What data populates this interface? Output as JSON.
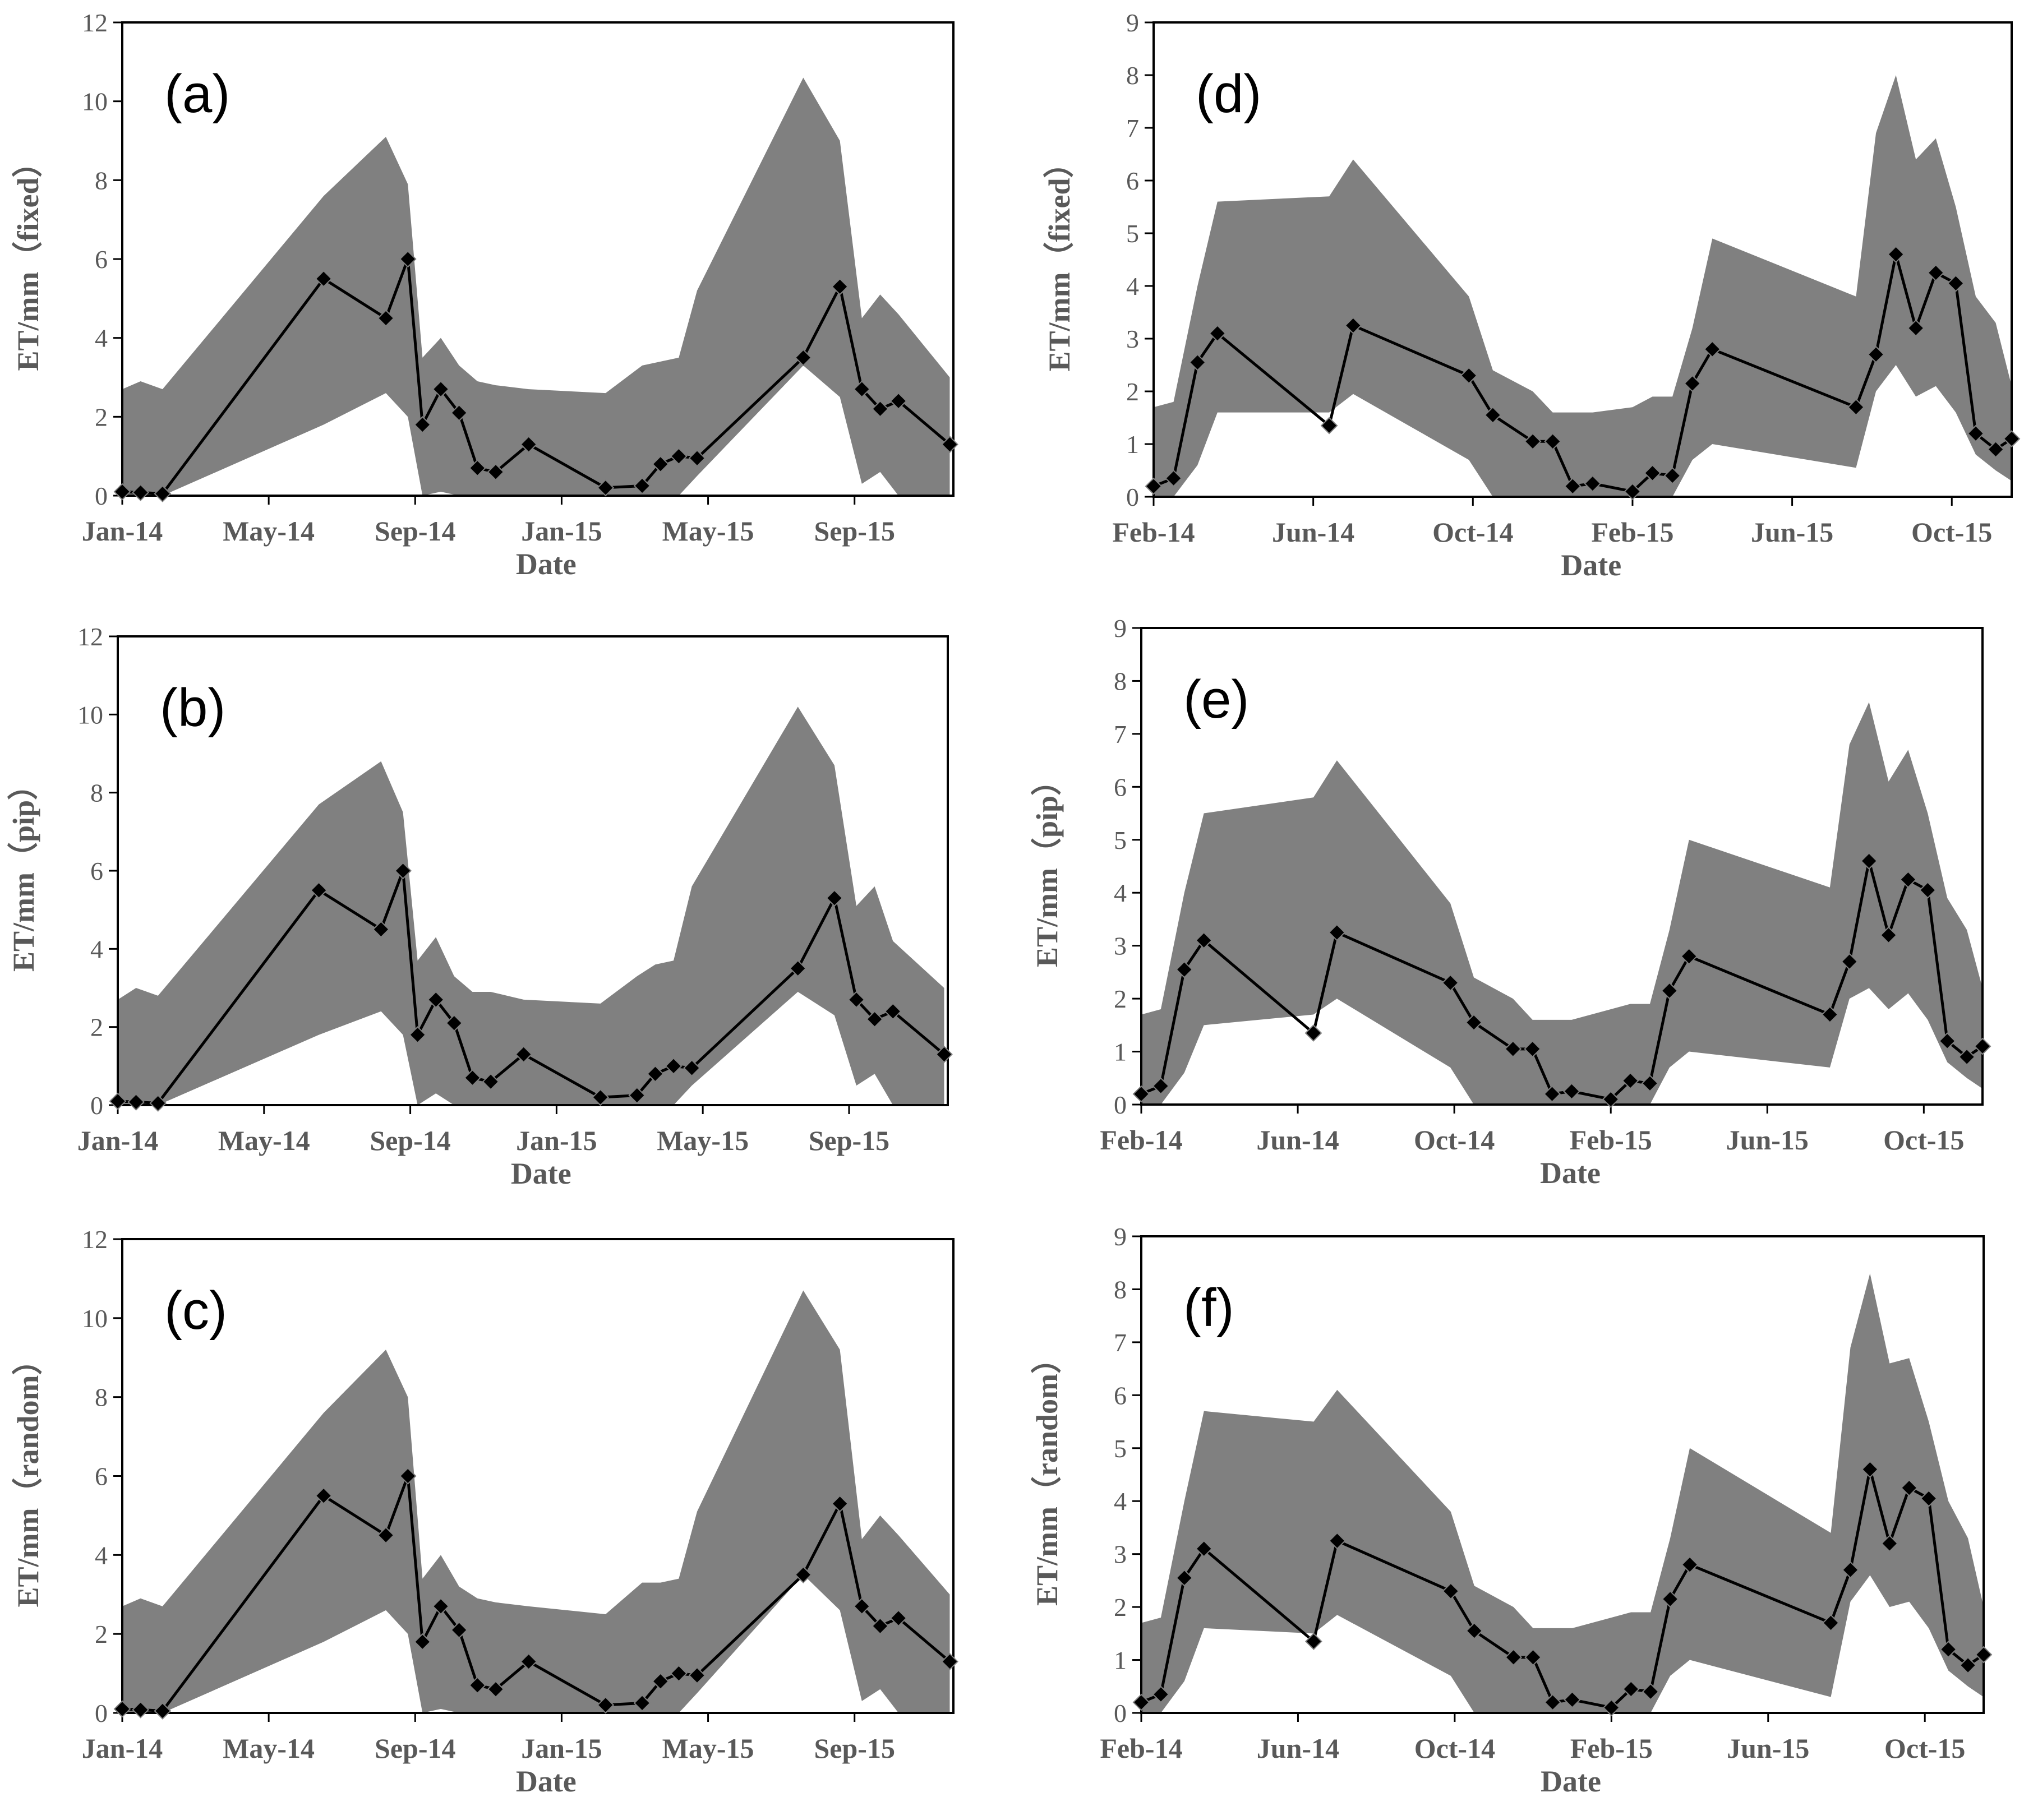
{
  "colors": {
    "band": "#808080",
    "line": "#000000",
    "axis": "#000000",
    "text": "#595959"
  },
  "marker_icon": "diamond-marker-icon",
  "chart_data": [
    {
      "id": "a",
      "type": "line",
      "panel_label": "(a)",
      "xlabel": "Date",
      "ylabel": "ET/mm（fixed）",
      "xlim": [
        0,
        22.7
      ],
      "ylim": [
        0,
        12
      ],
      "yticks": [
        0,
        2,
        4,
        6,
        8,
        10,
        12
      ],
      "xticks": [
        {
          "label": "Jan-14",
          "pos": 0
        },
        {
          "label": "May-14",
          "pos": 4
        },
        {
          "label": "Sep-14",
          "pos": 8
        },
        {
          "label": "Jan-15",
          "pos": 12
        },
        {
          "label": "May-15",
          "pos": 16
        },
        {
          "label": "Sep-15",
          "pos": 20
        }
      ],
      "series": [
        {
          "name": "ET",
          "x": [
            0,
            0.5,
            1.1,
            5.5,
            7.2,
            7.8,
            8.2,
            8.7,
            9.2,
            9.7,
            10.2,
            11.1,
            13.2,
            14.2,
            14.7,
            15.2,
            15.7,
            18.6,
            19.6,
            20.2,
            20.7,
            21.2,
            22.6
          ],
          "y": [
            0.1,
            0.08,
            0.05,
            5.5,
            4.5,
            6.0,
            1.8,
            2.7,
            2.1,
            0.7,
            0.6,
            1.3,
            0.2,
            0.25,
            0.8,
            1.0,
            0.95,
            3.5,
            5.3,
            2.7,
            2.2,
            2.4,
            1.3
          ]
        }
      ],
      "band": {
        "x": [
          0,
          0.5,
          1.1,
          5.5,
          7.2,
          7.8,
          8.2,
          8.7,
          9.2,
          9.7,
          10.2,
          11.1,
          13.2,
          14.2,
          14.7,
          15.2,
          15.7,
          18.6,
          19.6,
          20.2,
          20.7,
          21.2,
          22.6
        ],
        "upper": [
          2.7,
          2.9,
          2.7,
          7.6,
          9.1,
          7.9,
          3.5,
          4.0,
          3.3,
          2.9,
          2.8,
          2.7,
          2.6,
          3.3,
          3.4,
          3.5,
          5.2,
          10.6,
          9.0,
          4.5,
          5.1,
          4.6,
          3.0
        ],
        "lower": [
          0,
          0,
          0,
          1.8,
          2.6,
          2.0,
          0,
          0.1,
          0,
          0,
          0,
          0,
          0,
          0,
          0,
          0,
          0.5,
          3.3,
          2.5,
          0.3,
          0.6,
          0,
          0
        ]
      }
    },
    {
      "id": "b",
      "type": "line",
      "panel_label": "(b)",
      "xlabel": "Date",
      "ylabel": "ET/mm（pip）",
      "xlim": [
        0,
        22.7
      ],
      "ylim": [
        0,
        12
      ],
      "yticks": [
        0,
        2,
        4,
        6,
        8,
        10,
        12
      ],
      "xticks": [
        {
          "label": "Jan-14",
          "pos": 0
        },
        {
          "label": "May-14",
          "pos": 4
        },
        {
          "label": "Sep-14",
          "pos": 8
        },
        {
          "label": "Jan-15",
          "pos": 12
        },
        {
          "label": "May-15",
          "pos": 16
        },
        {
          "label": "Sep-15",
          "pos": 20
        }
      ],
      "series": [
        {
          "name": "ET",
          "x": [
            0,
            0.5,
            1.1,
            5.5,
            7.2,
            7.8,
            8.2,
            8.7,
            9.2,
            9.7,
            10.2,
            11.1,
            13.2,
            14.2,
            14.7,
            15.2,
            15.7,
            18.6,
            19.6,
            20.2,
            20.7,
            21.2,
            22.6
          ],
          "y": [
            0.1,
            0.08,
            0.05,
            5.5,
            4.5,
            6.0,
            1.8,
            2.7,
            2.1,
            0.7,
            0.6,
            1.3,
            0.2,
            0.25,
            0.8,
            1.0,
            0.95,
            3.5,
            5.3,
            2.7,
            2.2,
            2.4,
            1.3
          ]
        }
      ],
      "band": {
        "x": [
          0,
          0.5,
          1.1,
          5.5,
          7.2,
          7.8,
          8.2,
          8.7,
          9.2,
          9.7,
          10.2,
          11.1,
          13.2,
          14.2,
          14.7,
          15.2,
          15.7,
          18.6,
          19.6,
          20.2,
          20.7,
          21.2,
          22.6
        ],
        "upper": [
          2.7,
          3.0,
          2.8,
          7.7,
          8.8,
          7.5,
          3.7,
          4.3,
          3.3,
          2.9,
          2.9,
          2.7,
          2.6,
          3.3,
          3.6,
          3.7,
          5.6,
          10.2,
          8.7,
          5.1,
          5.6,
          4.2,
          3.0
        ],
        "lower": [
          0,
          0,
          0,
          1.8,
          2.4,
          1.8,
          0,
          0.3,
          0,
          0,
          0,
          0,
          0,
          0,
          0,
          0,
          0.5,
          2.9,
          2.3,
          0.5,
          0.8,
          0,
          0
        ]
      }
    },
    {
      "id": "c",
      "type": "line",
      "panel_label": "(c)",
      "xlabel": "Date",
      "ylabel": "ET/mm（random）",
      "xlim": [
        0,
        22.7
      ],
      "ylim": [
        0,
        12
      ],
      "yticks": [
        0,
        2,
        4,
        6,
        8,
        10,
        12
      ],
      "xticks": [
        {
          "label": "Jan-14",
          "pos": 0
        },
        {
          "label": "May-14",
          "pos": 4
        },
        {
          "label": "Sep-14",
          "pos": 8
        },
        {
          "label": "Jan-15",
          "pos": 12
        },
        {
          "label": "May-15",
          "pos": 16
        },
        {
          "label": "Sep-15",
          "pos": 20
        }
      ],
      "series": [
        {
          "name": "ET",
          "x": [
            0,
            0.5,
            1.1,
            5.5,
            7.2,
            7.8,
            8.2,
            8.7,
            9.2,
            9.7,
            10.2,
            11.1,
            13.2,
            14.2,
            14.7,
            15.2,
            15.7,
            18.6,
            19.6,
            20.2,
            20.7,
            21.2,
            22.6
          ],
          "y": [
            0.1,
            0.08,
            0.05,
            5.5,
            4.5,
            6.0,
            1.8,
            2.7,
            2.1,
            0.7,
            0.6,
            1.3,
            0.2,
            0.25,
            0.8,
            1.0,
            0.95,
            3.5,
            5.3,
            2.7,
            2.2,
            2.4,
            1.3
          ]
        }
      ],
      "band": {
        "x": [
          0,
          0.5,
          1.1,
          5.5,
          7.2,
          7.8,
          8.2,
          8.7,
          9.2,
          9.7,
          10.2,
          11.1,
          13.2,
          14.2,
          14.7,
          15.2,
          15.7,
          18.6,
          19.6,
          20.2,
          20.7,
          21.2,
          22.6
        ],
        "upper": [
          2.7,
          2.9,
          2.7,
          7.6,
          9.2,
          8.0,
          3.4,
          4.0,
          3.2,
          2.9,
          2.8,
          2.7,
          2.5,
          3.3,
          3.3,
          3.4,
          5.1,
          10.7,
          9.2,
          4.4,
          5.0,
          4.5,
          3.0
        ],
        "lower": [
          0,
          0,
          0,
          1.8,
          2.6,
          2.0,
          0,
          0.1,
          0,
          0,
          0,
          0,
          0,
          0,
          0,
          0,
          0.5,
          3.5,
          2.6,
          0.3,
          0.6,
          0,
          0
        ]
      }
    },
    {
      "id": "d",
      "type": "line",
      "panel_label": "(d)",
      "xlabel": "Date",
      "ylabel": "ET/mm（fixed）",
      "xlim": [
        0,
        21.5
      ],
      "ylim": [
        0,
        9
      ],
      "yticks": [
        0,
        1,
        2,
        3,
        4,
        5,
        6,
        7,
        8,
        9
      ],
      "xticks": [
        {
          "label": "Feb-14",
          "pos": 0
        },
        {
          "label": "Jun-14",
          "pos": 4
        },
        {
          "label": "Oct-14",
          "pos": 8
        },
        {
          "label": "Feb-15",
          "pos": 12
        },
        {
          "label": "Jun-15",
          "pos": 16
        },
        {
          "label": "Oct-15",
          "pos": 20
        }
      ],
      "series": [
        {
          "name": "ET",
          "x": [
            0,
            0.5,
            1.1,
            1.6,
            4.4,
            5.0,
            7.9,
            8.5,
            9.5,
            10.0,
            10.5,
            11.0,
            12.0,
            12.5,
            13.0,
            13.5,
            14.0,
            17.6,
            18.1,
            18.6,
            19.1,
            19.6,
            20.1,
            20.6,
            21.1,
            21.5
          ],
          "y": [
            0.2,
            0.35,
            2.55,
            3.1,
            1.35,
            3.25,
            2.3,
            1.55,
            1.05,
            1.05,
            0.2,
            0.25,
            0.1,
            0.45,
            0.4,
            2.15,
            2.8,
            1.7,
            2.7,
            4.6,
            3.2,
            4.25,
            4.05,
            1.2,
            0.9,
            1.1
          ]
        }
      ],
      "band": {
        "x": [
          0,
          0.5,
          1.1,
          1.6,
          4.4,
          5.0,
          7.9,
          8.5,
          9.5,
          10.0,
          10.5,
          11.0,
          12.0,
          12.5,
          13.0,
          13.5,
          14.0,
          17.6,
          18.1,
          18.6,
          19.1,
          19.6,
          20.1,
          20.6,
          21.1,
          21.5
        ],
        "upper": [
          1.7,
          1.8,
          4.0,
          5.6,
          5.7,
          6.4,
          3.8,
          2.4,
          2.0,
          1.6,
          1.6,
          1.6,
          1.7,
          1.9,
          1.9,
          3.2,
          4.9,
          3.8,
          6.9,
          8.0,
          6.4,
          6.8,
          5.5,
          3.8,
          3.3,
          2.1
        ],
        "lower": [
          0,
          0,
          0.6,
          1.6,
          1.6,
          1.95,
          0.7,
          0,
          0,
          0,
          0,
          0,
          0,
          0,
          0,
          0.7,
          1.0,
          0.55,
          2.0,
          2.5,
          1.9,
          2.1,
          1.6,
          0.8,
          0.5,
          0.3
        ]
      }
    },
    {
      "id": "e",
      "type": "line",
      "panel_label": "(e)",
      "xlabel": "Date",
      "ylabel": "ET/mm（pip）",
      "xlim": [
        0,
        21.5
      ],
      "ylim": [
        0,
        9
      ],
      "yticks": [
        0,
        1,
        2,
        3,
        4,
        5,
        6,
        7,
        8,
        9
      ],
      "xticks": [
        {
          "label": "Feb-14",
          "pos": 0
        },
        {
          "label": "Jun-14",
          "pos": 4
        },
        {
          "label": "Oct-14",
          "pos": 8
        },
        {
          "label": "Feb-15",
          "pos": 12
        },
        {
          "label": "Jun-15",
          "pos": 16
        },
        {
          "label": "Oct-15",
          "pos": 20
        }
      ],
      "series": [
        {
          "name": "ET",
          "x": [
            0,
            0.5,
            1.1,
            1.6,
            4.4,
            5.0,
            7.9,
            8.5,
            9.5,
            10.0,
            10.5,
            11.0,
            12.0,
            12.5,
            13.0,
            13.5,
            14.0,
            17.6,
            18.1,
            18.6,
            19.1,
            19.6,
            20.1,
            20.6,
            21.1,
            21.5
          ],
          "y": [
            0.2,
            0.35,
            2.55,
            3.1,
            1.35,
            3.25,
            2.3,
            1.55,
            1.05,
            1.05,
            0.2,
            0.25,
            0.1,
            0.45,
            0.4,
            2.15,
            2.8,
            1.7,
            2.7,
            4.6,
            3.2,
            4.25,
            4.05,
            1.2,
            0.9,
            1.1
          ]
        }
      ],
      "band": {
        "x": [
          0,
          0.5,
          1.1,
          1.6,
          4.4,
          5.0,
          7.9,
          8.5,
          9.5,
          10.0,
          10.5,
          11.0,
          12.0,
          12.5,
          13.0,
          13.5,
          14.0,
          17.6,
          18.1,
          18.6,
          19.1,
          19.6,
          20.1,
          20.6,
          21.1,
          21.5
        ],
        "upper": [
          1.7,
          1.8,
          4.0,
          5.5,
          5.8,
          6.5,
          3.8,
          2.4,
          2.0,
          1.6,
          1.6,
          1.6,
          1.8,
          1.9,
          1.9,
          3.3,
          5.0,
          4.1,
          6.8,
          7.6,
          6.1,
          6.7,
          5.5,
          3.9,
          3.3,
          2.2
        ],
        "lower": [
          0,
          0,
          0.6,
          1.5,
          1.7,
          2.0,
          0.7,
          0,
          0,
          0,
          0,
          0,
          0,
          0,
          0,
          0.7,
          1.0,
          0.7,
          2.0,
          2.2,
          1.8,
          2.1,
          1.6,
          0.8,
          0.5,
          0.3
        ]
      }
    },
    {
      "id": "f",
      "type": "line",
      "panel_label": "(f)",
      "xlabel": "Date",
      "ylabel": "ET/mm（random）",
      "xlim": [
        0,
        21.5
      ],
      "ylim": [
        0,
        9
      ],
      "yticks": [
        0,
        1,
        2,
        3,
        4,
        5,
        6,
        7,
        8,
        9
      ],
      "xticks": [
        {
          "label": "Feb-14",
          "pos": 0
        },
        {
          "label": "Jun-14",
          "pos": 4
        },
        {
          "label": "Oct-14",
          "pos": 8
        },
        {
          "label": "Feb-15",
          "pos": 12
        },
        {
          "label": "Jun-15",
          "pos": 16
        },
        {
          "label": "Oct-15",
          "pos": 20
        }
      ],
      "series": [
        {
          "name": "ET",
          "x": [
            0,
            0.5,
            1.1,
            1.6,
            4.4,
            5.0,
            7.9,
            8.5,
            9.5,
            10.0,
            10.5,
            11.0,
            12.0,
            12.5,
            13.0,
            13.5,
            14.0,
            17.6,
            18.1,
            18.6,
            19.1,
            19.6,
            20.1,
            20.6,
            21.1,
            21.5
          ],
          "y": [
            0.2,
            0.35,
            2.55,
            3.1,
            1.35,
            3.25,
            2.3,
            1.55,
            1.05,
            1.05,
            0.2,
            0.25,
            0.1,
            0.45,
            0.4,
            2.15,
            2.8,
            1.7,
            2.7,
            4.6,
            3.2,
            4.25,
            4.05,
            1.2,
            0.9,
            1.1
          ]
        }
      ],
      "band": {
        "x": [
          0,
          0.5,
          1.1,
          1.6,
          4.4,
          5.0,
          7.9,
          8.5,
          9.5,
          10.0,
          10.5,
          11.0,
          12.0,
          12.5,
          13.0,
          13.5,
          14.0,
          17.6,
          18.1,
          18.6,
          19.1,
          19.6,
          20.1,
          20.6,
          21.1,
          21.5
        ],
        "upper": [
          1.7,
          1.8,
          4.0,
          5.7,
          5.5,
          6.1,
          3.8,
          2.4,
          2.0,
          1.6,
          1.6,
          1.6,
          1.8,
          1.9,
          1.9,
          3.3,
          5.0,
          3.4,
          6.9,
          8.3,
          6.6,
          6.7,
          5.5,
          4.0,
          3.3,
          2.0
        ],
        "lower": [
          0,
          0,
          0.6,
          1.6,
          1.5,
          1.85,
          0.7,
          0,
          0,
          0,
          0,
          0,
          0,
          0,
          0,
          0.7,
          1.0,
          0.3,
          2.1,
          2.6,
          2.0,
          2.1,
          1.6,
          0.8,
          0.5,
          0.3
        ]
      }
    }
  ]
}
